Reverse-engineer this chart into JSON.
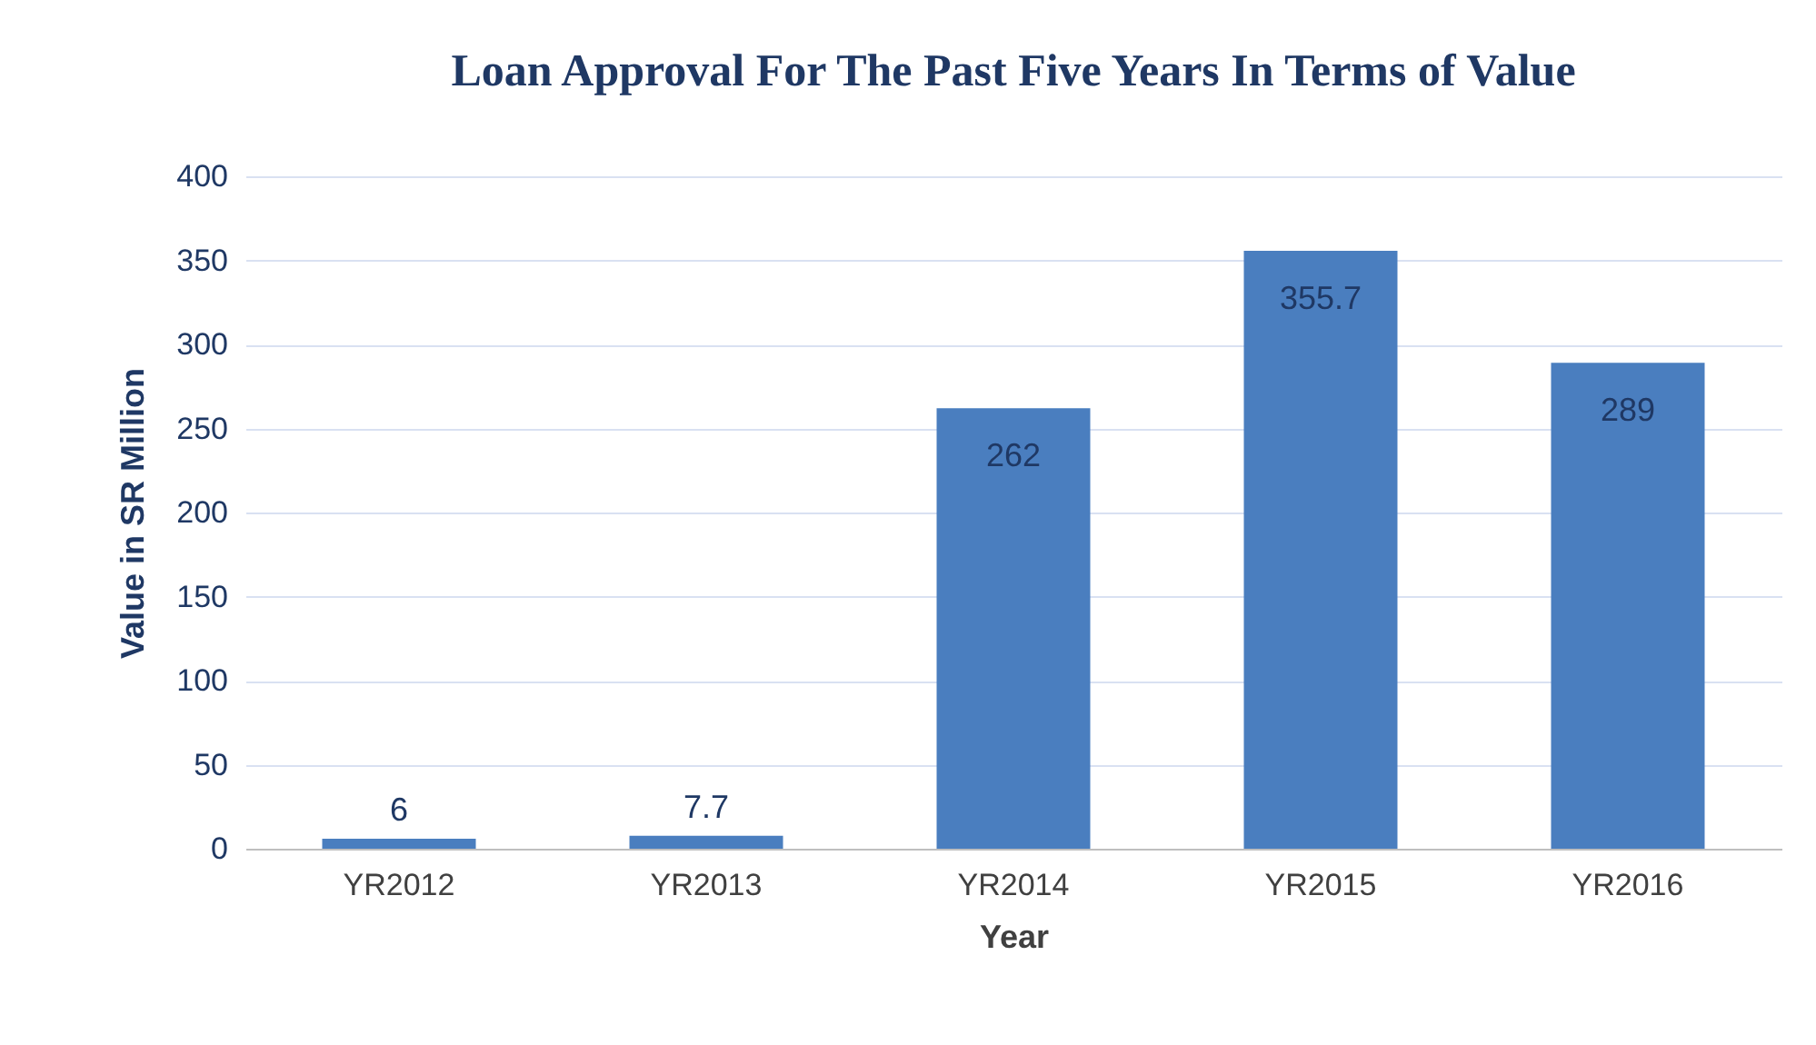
{
  "chart_data": {
    "type": "bar",
    "title": "Loan Approval For The Past Five Years In Terms of Value",
    "xlabel": "Year",
    "ylabel": "Value in SR Million",
    "categories": [
      "YR2012",
      "YR2013",
      "YR2014",
      "YR2015",
      "YR2016"
    ],
    "values": [
      6,
      7.7,
      262,
      355.7,
      289
    ],
    "color": "#4a7ebf",
    "ylim": [
      0,
      400
    ],
    "yticks": [
      0,
      50,
      100,
      150,
      200,
      250,
      300,
      350,
      400
    ],
    "grid": "y",
    "data_labels": true
  }
}
